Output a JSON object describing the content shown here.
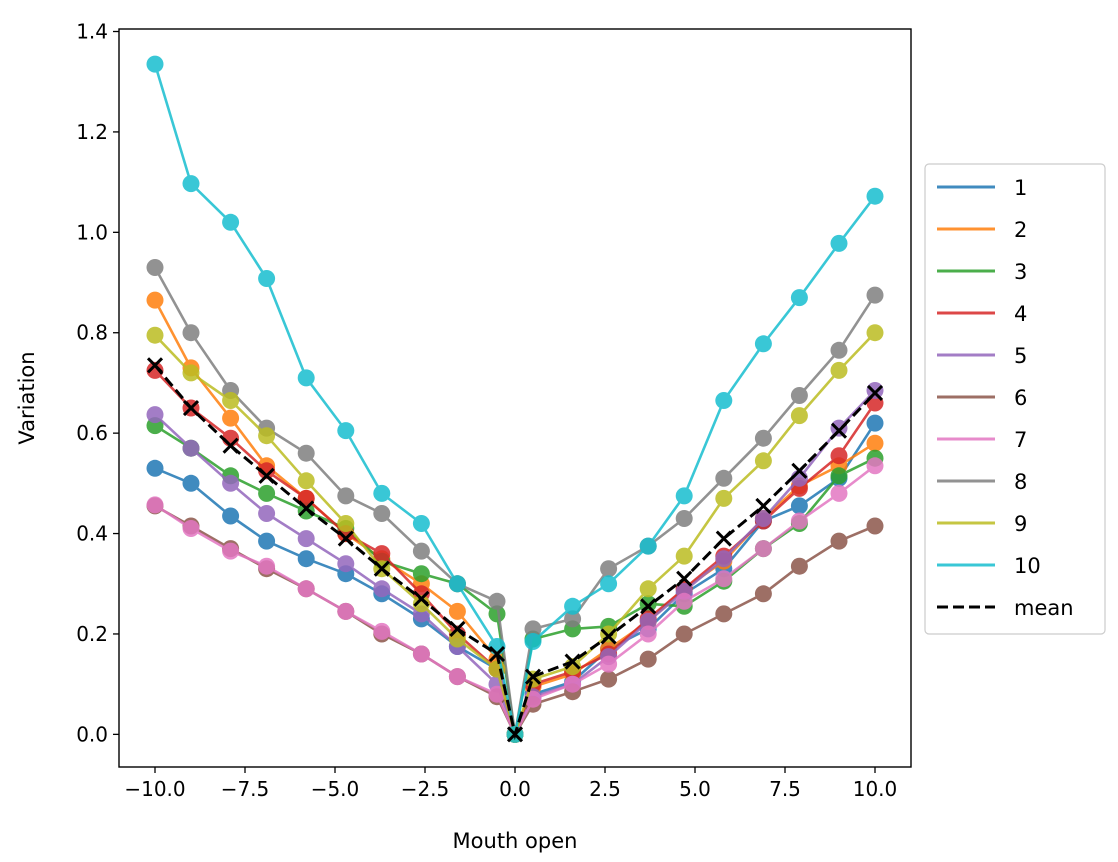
{
  "chart_data": {
    "type": "line",
    "title": "",
    "xlabel": "Mouth open",
    "ylabel": "Variation",
    "xlim": [
      -11.0,
      11.0
    ],
    "ylim": [
      -0.065,
      1.405
    ],
    "xticks": [
      -10.0,
      -7.5,
      -5.0,
      -2.5,
      0.0,
      2.5,
      5.0,
      7.5,
      10.0
    ],
    "xtick_labels": [
      "−10.0",
      "−7.5",
      "−5.0",
      "−2.5",
      "0.0",
      "2.5",
      "5.0",
      "7.5",
      "10.0"
    ],
    "yticks": [
      0.0,
      0.2,
      0.4,
      0.6,
      0.8,
      1.0,
      1.2,
      1.4
    ],
    "ytick_labels": [
      "0.0",
      "0.2",
      "0.4",
      "0.6",
      "0.8",
      "1.0",
      "1.2",
      "1.4"
    ],
    "legend_position": "center-right-outside",
    "x": [
      -10.0,
      -9.0,
      -7.9,
      -6.9,
      -5.8,
      -4.7,
      -3.7,
      -2.6,
      -1.6,
      -0.5,
      0.0,
      0.5,
      1.6,
      2.6,
      3.7,
      4.7,
      5.8,
      6.9,
      7.9,
      9.0,
      10.0
    ],
    "series": [
      {
        "name": "1",
        "color": "#1f77b4",
        "values": [
          0.53,
          0.5,
          0.435,
          0.385,
          0.35,
          0.32,
          0.28,
          0.23,
          0.175,
          0.13,
          0.0,
          0.08,
          0.105,
          0.17,
          0.21,
          0.28,
          0.33,
          0.425,
          0.455,
          0.51,
          0.62
        ]
      },
      {
        "name": "2",
        "color": "#ff7f0e",
        "values": [
          0.865,
          0.73,
          0.63,
          0.535,
          0.47,
          0.4,
          0.35,
          0.3,
          0.245,
          0.15,
          0.0,
          0.095,
          0.12,
          0.17,
          0.225,
          0.29,
          0.345,
          0.43,
          0.495,
          0.535,
          0.58
        ]
      },
      {
        "name": "3",
        "color": "#2ca02c",
        "values": [
          0.615,
          0.57,
          0.515,
          0.48,
          0.445,
          0.41,
          0.345,
          0.32,
          0.3,
          0.24,
          0.0,
          0.19,
          0.21,
          0.215,
          0.26,
          0.255,
          0.305,
          0.37,
          0.42,
          0.515,
          0.55
        ]
      },
      {
        "name": "4",
        "color": "#d62728",
        "values": [
          0.725,
          0.65,
          0.59,
          0.525,
          0.47,
          0.4,
          0.36,
          0.28,
          0.2,
          0.13,
          0.0,
          0.1,
          0.125,
          0.16,
          0.23,
          0.29,
          0.355,
          0.425,
          0.49,
          0.555,
          0.66
        ]
      },
      {
        "name": "5",
        "color": "#9467bd",
        "values": [
          0.637,
          0.57,
          0.5,
          0.44,
          0.39,
          0.34,
          0.29,
          0.24,
          0.175,
          0.1,
          0.0,
          0.075,
          0.1,
          0.155,
          0.225,
          0.285,
          0.35,
          0.43,
          0.51,
          0.61,
          0.685
        ]
      },
      {
        "name": "6",
        "color": "#8c564b",
        "values": [
          0.455,
          0.415,
          0.37,
          0.33,
          0.29,
          0.245,
          0.2,
          0.16,
          0.115,
          0.075,
          0.0,
          0.06,
          0.085,
          0.11,
          0.15,
          0.2,
          0.24,
          0.28,
          0.335,
          0.385,
          0.415
        ]
      },
      {
        "name": "7",
        "color": "#e377c2",
        "values": [
          0.457,
          0.41,
          0.365,
          0.335,
          0.29,
          0.245,
          0.205,
          0.16,
          0.115,
          0.08,
          0.0,
          0.07,
          0.1,
          0.14,
          0.2,
          0.265,
          0.31,
          0.37,
          0.425,
          0.48,
          0.535
        ]
      },
      {
        "name": "8",
        "color": "#7f7f7f",
        "values": [
          0.93,
          0.8,
          0.685,
          0.61,
          0.56,
          0.475,
          0.44,
          0.365,
          0.3,
          0.265,
          0.0,
          0.21,
          0.23,
          0.33,
          0.375,
          0.43,
          0.51,
          0.59,
          0.675,
          0.765,
          0.875
        ]
      },
      {
        "name": "9",
        "color": "#bcbd22",
        "values": [
          0.795,
          0.72,
          0.665,
          0.595,
          0.505,
          0.42,
          0.33,
          0.26,
          0.19,
          0.13,
          0.0,
          0.11,
          0.135,
          0.2,
          0.29,
          0.355,
          0.47,
          0.545,
          0.635,
          0.725,
          0.8
        ]
      },
      {
        "name": "10",
        "color": "#17becf",
        "values": [
          1.335,
          1.097,
          1.02,
          0.908,
          0.71,
          0.605,
          0.48,
          0.42,
          0.3,
          0.175,
          0.0,
          0.185,
          0.255,
          0.3,
          0.375,
          0.475,
          0.665,
          0.778,
          0.87,
          0.978,
          1.072
        ]
      }
    ],
    "mean": {
      "name": "mean",
      "color": "#000000",
      "values": [
        0.735,
        0.65,
        0.575,
        0.515,
        0.45,
        0.39,
        0.33,
        0.27,
        0.21,
        0.16,
        0.0,
        0.115,
        0.145,
        0.195,
        0.255,
        0.31,
        0.39,
        0.455,
        0.525,
        0.605,
        0.68
      ]
    }
  }
}
